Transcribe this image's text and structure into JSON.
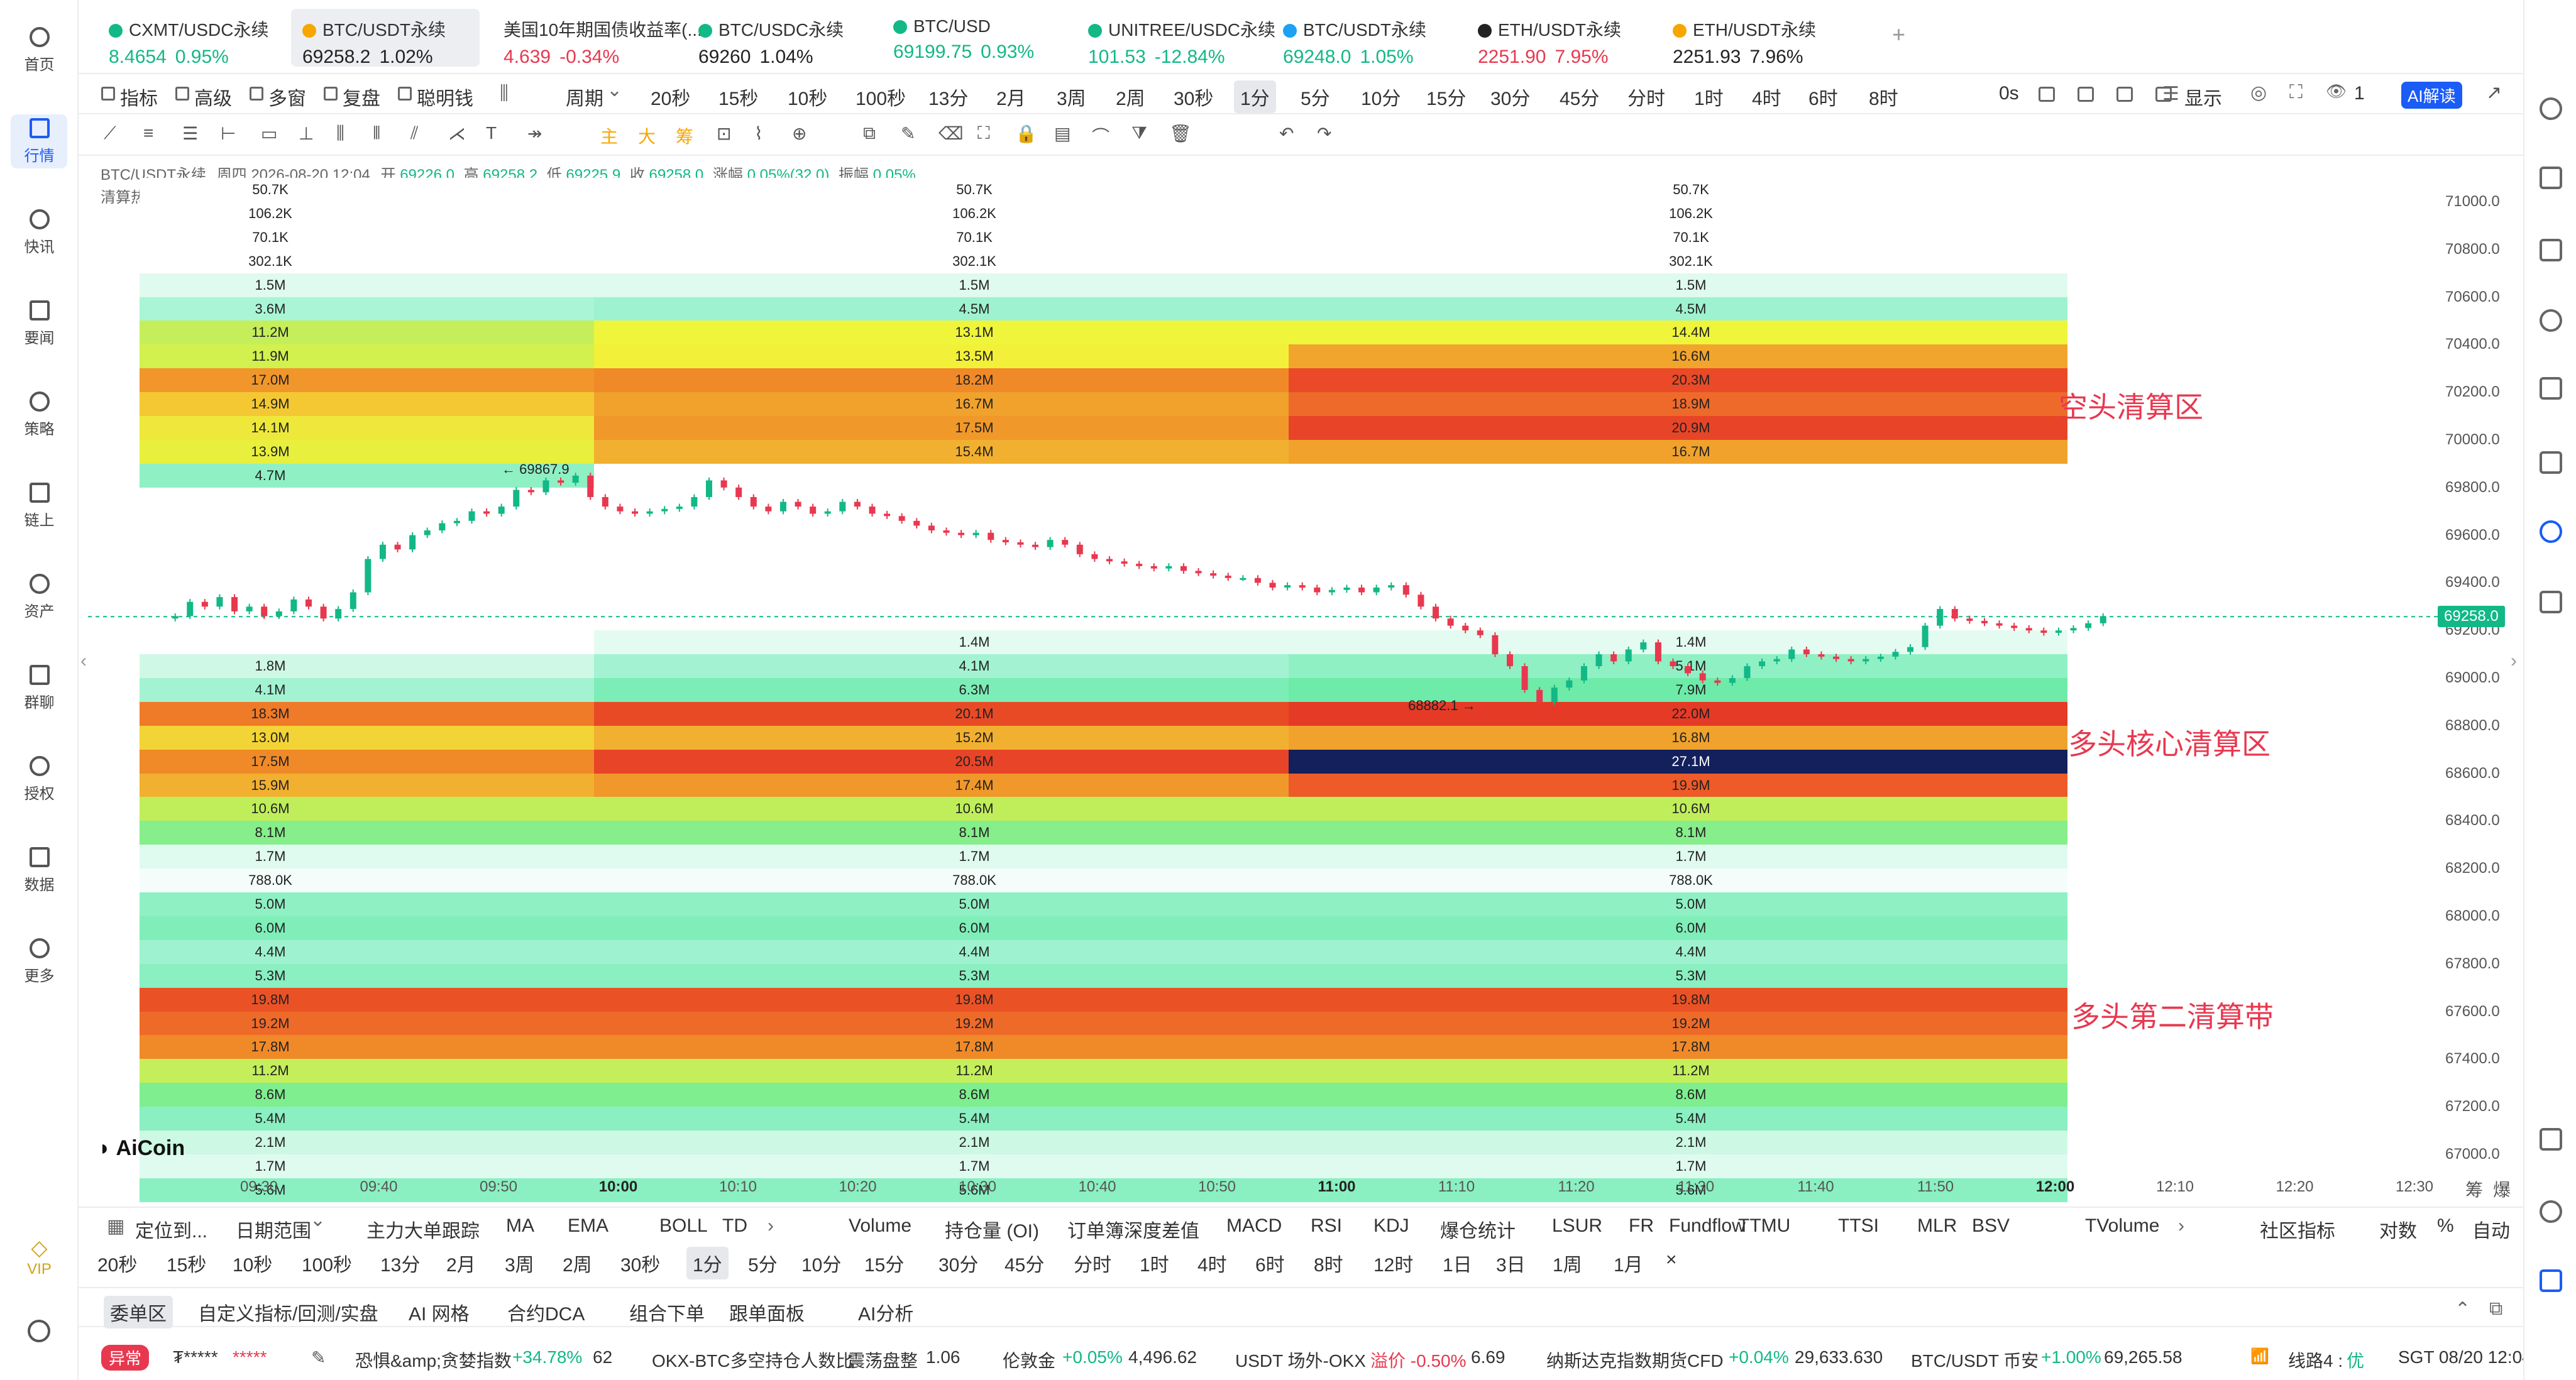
{
  "left_nav": [
    {
      "label": "首页",
      "icon": "home-icon"
    },
    {
      "label": "行情",
      "icon": "market-icon",
      "active": true
    },
    {
      "label": "快讯",
      "icon": "flash-news-icon"
    },
    {
      "label": "要闻",
      "icon": "news-icon"
    },
    {
      "label": "策略",
      "icon": "strategy-bot-icon"
    },
    {
      "label": "链上",
      "icon": "onchain-icon"
    },
    {
      "label": "资产",
      "icon": "wallet-icon"
    },
    {
      "label": "群聊",
      "icon": "group-chat-icon"
    },
    {
      "label": "授权",
      "icon": "authorize-icon"
    },
    {
      "label": "数据",
      "icon": "data-icon"
    },
    {
      "label": "更多",
      "icon": "more-grid-icon"
    }
  ],
  "vip_label": "VIP",
  "tickers": [
    {
      "name": "CXMT/USDC永续",
      "price": "8.4654",
      "change": "0.95%",
      "dir": "up",
      "coin_color": "#12b886"
    },
    {
      "name": "BTC/USDT永续",
      "price": "69258.2",
      "change": "1.02%",
      "dir": "neutral",
      "coin_color": "#f7a600",
      "selected": true
    },
    {
      "name": "美国10年期国债收益率(...",
      "price": "4.639",
      "change": "-0.34%",
      "dir": "dn"
    },
    {
      "name": "BTC/USDC永续",
      "price": "69260",
      "change": "1.04%",
      "dir": "neutral",
      "coin_color": "#12b886"
    },
    {
      "name": "BTC/USD",
      "price": "69199.75",
      "change": "0.93%",
      "dir": "up",
      "coin_color": "#12b886"
    },
    {
      "name": "UNITREE/USDC永续",
      "price": "101.53",
      "change": "-12.84%",
      "dir": "up",
      "coin_color": "#12b886"
    },
    {
      "name": "BTC/USDT永续",
      "price": "69248.0",
      "change": "1.05%",
      "dir": "up",
      "coin_color": "#1da1f2"
    },
    {
      "name": "ETH/USDT永续",
      "price": "2251.90",
      "change": "7.95%",
      "dir": "dn",
      "coin_color": "#222"
    },
    {
      "name": "ETH/USDT永续",
      "price": "2251.93",
      "change": "7.96%",
      "dir": "neutral",
      "coin_color": "#f7a600"
    }
  ],
  "add_tab": "+",
  "toolbar1": {
    "items": [
      "指标",
      "高级",
      "多窗",
      "复盘",
      "聪明钱"
    ],
    "period_label": "周期",
    "periods": [
      "20秒",
      "15秒",
      "10秒",
      "100秒",
      "13分",
      "2月",
      "3周",
      "2周",
      "30秒",
      "1分",
      "5分",
      "10分",
      "15分",
      "30分",
      "45分",
      "分时",
      "1时",
      "4时",
      "6时",
      "8时"
    ],
    "active_period": "1分",
    "countdown": "0s",
    "display": "显示",
    "layers": "1",
    "ai": "AI解读"
  },
  "chart_info": {
    "symbol": "BTC/USDT永续",
    "datetime": "周四 2026-08-20 12:04",
    "open_label": "开",
    "open": "69226.0",
    "high_label": "高",
    "high": "69258.2",
    "low_label": "低",
    "low": "69225.9",
    "close_label": "收",
    "close": "69258.0",
    "chg_label": "涨幅",
    "chg": "0.05%(32.0)",
    "amp_label": "振幅",
    "amp": "0.05%",
    "heatmap_label": "清算热力图"
  },
  "y_axis": [
    "71000.0",
    "70800.0",
    "70600.0",
    "70400.0",
    "70200.0",
    "70000.0",
    "69800.0",
    "69600.0",
    "69400.0",
    "69200.0",
    "69000.0",
    "68800.0",
    "68600.0",
    "68400.0",
    "68200.0",
    "68000.0",
    "67800.0",
    "67600.0",
    "67400.0",
    "67200.0",
    "67000.0"
  ],
  "x_axis": [
    "09:30",
    "09:40",
    "09:50",
    "10:00",
    "10:10",
    "10:20",
    "10:30",
    "10:40",
    "10:50",
    "11:00",
    "11:10",
    "11:20",
    "11:30",
    "11:40",
    "11:50",
    "12:00",
    "12:10",
    "12:20",
    "12:30"
  ],
  "current_price": "69258.0",
  "high_marker": "69867.9",
  "low_marker": "68882.1",
  "zone_labels": {
    "short": "空头清算区",
    "long_core": "多头核心清算区",
    "long_second": "多头第二清算带"
  },
  "watermark": "AiCoin",
  "axis_corner": [
    "筹",
    "爆"
  ],
  "heatmap": {
    "rows": [
      {
        "price": 71050,
        "labels": [
          "50.7K",
          "50.7K",
          "50.7K"
        ],
        "colors": [
          "#ffffff",
          "#ffffff",
          "#ffffff"
        ]
      },
      {
        "price": 70950,
        "labels": [
          "106.2K",
          "106.2K",
          "106.2K"
        ],
        "colors": [
          "#ffffff",
          "#ffffff",
          "#ffffff"
        ]
      },
      {
        "price": 70850,
        "labels": [
          "70.1K",
          "70.1K",
          "70.1K"
        ],
        "colors": [
          "#ffffff",
          "#ffffff",
          "#ffffff"
        ]
      },
      {
        "price": 70750,
        "labels": [
          "302.1K",
          "302.1K",
          "302.1K"
        ],
        "colors": [
          "#ffffff",
          "#ffffff",
          "#ffffff"
        ]
      },
      {
        "price": 70650,
        "labels": [
          "1.5M",
          "1.5M",
          "1.5M"
        ],
        "colors": [
          "#dffaef",
          "#dffaef",
          "#dffaef"
        ]
      },
      {
        "price": 70550,
        "labels": [
          "3.6M",
          "4.5M",
          "4.5M"
        ],
        "colors": [
          "#a9f5d6",
          "#9ef2cf",
          "#9ef2cf"
        ]
      },
      {
        "price": 70450,
        "labels": [
          "11.2M",
          "13.1M",
          "14.4M"
        ],
        "colors": [
          "#c4ef5a",
          "#eef53a",
          "#eef53a"
        ]
      },
      {
        "price": 70350,
        "labels": [
          "11.9M",
          "13.5M",
          "16.6M"
        ],
        "colors": [
          "#d2f04e",
          "#f3f03a",
          "#f2a52c"
        ]
      },
      {
        "price": 70250,
        "labels": [
          "17.0M",
          "18.2M",
          "20.3M"
        ],
        "colors": [
          "#f0962a",
          "#f08a28",
          "#ea4a27"
        ]
      },
      {
        "price": 70150,
        "labels": [
          "14.9M",
          "16.7M",
          "18.9M"
        ],
        "colors": [
          "#f4c832",
          "#f0a22c",
          "#ee6a2a"
        ]
      },
      {
        "price": 70050,
        "labels": [
          "14.1M",
          "17.5M",
          "20.9M"
        ],
        "colors": [
          "#eee83a",
          "#f0982a",
          "#e84427"
        ]
      },
      {
        "price": 69950,
        "labels": [
          "13.9M",
          "15.4M",
          "16.7M"
        ],
        "colors": [
          "#e8ef3c",
          "#f2b030",
          "#f0a22c"
        ]
      },
      {
        "price": 69850,
        "labels": [
          "4.7M",
          "",
          ""
        ],
        "colors": [
          "#8ff0c4",
          "transparent",
          "transparent"
        ]
      },
      {
        "price": 69150,
        "labels": [
          "",
          "1.4M",
          "1.4M"
        ],
        "colors": [
          "transparent",
          "#e4fbf1",
          "#e4fbf1"
        ]
      },
      {
        "price": 69050,
        "labels": [
          "1.8M",
          "4.1M",
          "5.1M"
        ],
        "colors": [
          "#cff8e6",
          "#a3f3d2",
          "#8ff0c4"
        ]
      },
      {
        "price": 68950,
        "labels": [
          "4.1M",
          "6.3M",
          "7.9M"
        ],
        "colors": [
          "#a3f3d2",
          "#7cedb6",
          "#6eeaa9"
        ]
      },
      {
        "price": 68850,
        "labels": [
          "18.3M",
          "20.1M",
          "22.0M"
        ],
        "colors": [
          "#ef7a28",
          "#e84a26",
          "#e53a26"
        ]
      },
      {
        "price": 68750,
        "labels": [
          "13.0M",
          "15.2M",
          "16.8M"
        ],
        "colors": [
          "#f2d436",
          "#f2b030",
          "#f0a22c"
        ]
      },
      {
        "price": 68650,
        "labels": [
          "17.5M",
          "20.5M",
          "27.1M"
        ],
        "colors": [
          "#f08a28",
          "#e84427",
          "#13205c"
        ]
      },
      {
        "price": 68550,
        "labels": [
          "15.9M",
          "17.4M",
          "19.9M"
        ],
        "colors": [
          "#f2b030",
          "#f0982a",
          "#ee5a28"
        ]
      },
      {
        "price": 68450,
        "labels": [
          "10.6M",
          "10.6M",
          "10.6M"
        ],
        "colors": [
          "#c0ee5a",
          "#c0ee5a",
          "#c0ee5a"
        ]
      },
      {
        "price": 68350,
        "labels": [
          "8.1M",
          "8.1M",
          "8.1M"
        ],
        "colors": [
          "#86ee8a",
          "#86ee8a",
          "#86ee8a"
        ]
      },
      {
        "price": 68250,
        "labels": [
          "1.7M",
          "1.7M",
          "1.7M"
        ],
        "colors": [
          "#dffaef",
          "#dffaef",
          "#dffaef"
        ]
      },
      {
        "price": 68150,
        "labels": [
          "788.0K",
          "788.0K",
          "788.0K"
        ],
        "colors": [
          "#f4fdf9",
          "#f4fdf9",
          "#f4fdf9"
        ]
      },
      {
        "price": 68050,
        "labels": [
          "5.0M",
          "5.0M",
          "5.0M"
        ],
        "colors": [
          "#8ff0c4",
          "#8ff0c4",
          "#8ff0c4"
        ]
      },
      {
        "price": 67950,
        "labels": [
          "6.0M",
          "6.0M",
          "6.0M"
        ],
        "colors": [
          "#80eeb9",
          "#80eeb9",
          "#80eeb9"
        ]
      },
      {
        "price": 67850,
        "labels": [
          "4.4M",
          "4.4M",
          "4.4M"
        ],
        "colors": [
          "#9ef2cf",
          "#9ef2cf",
          "#9ef2cf"
        ]
      },
      {
        "price": 67750,
        "labels": [
          "5.3M",
          "5.3M",
          "5.3M"
        ],
        "colors": [
          "#8aefc1",
          "#8aefc1",
          "#8aefc1"
        ]
      },
      {
        "price": 67650,
        "labels": [
          "19.8M",
          "19.8M",
          "19.8M"
        ],
        "colors": [
          "#ea5226",
          "#ea5226",
          "#ea5226"
        ]
      },
      {
        "price": 67550,
        "labels": [
          "19.2M",
          "19.2M",
          "19.2M"
        ],
        "colors": [
          "#ee6a28",
          "#ee6a28",
          "#ee6a28"
        ]
      },
      {
        "price": 67450,
        "labels": [
          "17.8M",
          "17.8M",
          "17.8M"
        ],
        "colors": [
          "#f08a28",
          "#f08a28",
          "#f08a28"
        ]
      },
      {
        "price": 67350,
        "labels": [
          "11.2M",
          "11.2M",
          "11.2M"
        ],
        "colors": [
          "#c4ef5a",
          "#c4ef5a",
          "#c4ef5a"
        ]
      },
      {
        "price": 67250,
        "labels": [
          "8.6M",
          "8.6M",
          "8.6M"
        ],
        "colors": [
          "#7eee8e",
          "#7eee8e",
          "#7eee8e"
        ]
      },
      {
        "price": 67150,
        "labels": [
          "5.4M",
          "5.4M",
          "5.4M"
        ],
        "colors": [
          "#8aefc1",
          "#8aefc1",
          "#8aefc1"
        ]
      },
      {
        "price": 67050,
        "labels": [
          "2.1M",
          "2.1M",
          "2.1M"
        ],
        "colors": [
          "#ccf8e4",
          "#ccf8e4",
          "#ccf8e4"
        ]
      },
      {
        "price": 66950,
        "labels": [
          "1.7M",
          "1.7M",
          "1.7M"
        ],
        "colors": [
          "#dffaef",
          "#dffaef",
          "#dffaef"
        ]
      },
      {
        "price": 66850,
        "labels": [
          "5.6M",
          "5.6M",
          "5.6M"
        ],
        "colors": [
          "#8aefc1",
          "#8aefc1",
          "#8aefc1"
        ]
      }
    ],
    "segments_time": [
      "09:20",
      "09:58",
      "10:56",
      "12:01"
    ]
  },
  "candles_close": [
    69260,
    69320,
    69300,
    69340,
    69280,
    69300,
    69260,
    69280,
    69330,
    69300,
    69250,
    69290,
    69360,
    69500,
    69560,
    69540,
    69600,
    69620,
    69650,
    69660,
    69700,
    69690,
    69720,
    69790,
    69780,
    69830,
    69820,
    69850,
    69760,
    69720,
    69700,
    69690,
    69700,
    69710,
    69720,
    69760,
    69830,
    69800,
    69760,
    69720,
    69700,
    69740,
    69720,
    69690,
    69700,
    69740,
    69720,
    69690,
    69680,
    69660,
    69640,
    69620,
    69610,
    69600,
    69610,
    69580,
    69570,
    69560,
    69550,
    69580,
    69560,
    69520,
    69500,
    69490,
    69480,
    69470,
    69460,
    69470,
    69450,
    69440,
    69430,
    69420,
    69420,
    69400,
    69380,
    69390,
    69380,
    69360,
    69370,
    69380,
    69360,
    69380,
    69390,
    69350,
    69300,
    69250,
    69220,
    69200,
    69180,
    69100,
    69050,
    68950,
    68900,
    68960,
    68990,
    69050,
    69100,
    69070,
    69120,
    69150,
    69070,
    69050,
    69020,
    68990,
    68980,
    69000,
    69050,
    69070,
    69080,
    69120,
    69100,
    69090,
    69080,
    69070,
    69080,
    69090,
    69110,
    69130,
    69220,
    69290,
    69250,
    69240,
    69230,
    69220,
    69210,
    69200,
    69190,
    69200,
    69210,
    69230,
    69260
  ],
  "indicator_bar": {
    "left": [
      "定位到...",
      "日期范围",
      "主力大单跟踪",
      "MA",
      "EMA",
      "BOLL",
      "TD"
    ],
    "sub": [
      "Volume",
      "持仓量 (OI)",
      "订单簿深度差值",
      "MACD",
      "RSI",
      "KDJ",
      "爆仓统计",
      "LSUR",
      "FR",
      "Fundflow",
      "TTMU",
      "TTSI",
      "MLR",
      "BSV",
      "TVolume"
    ],
    "right": [
      "社区指标",
      "对数",
      "%",
      "自动"
    ]
  },
  "period_bar": [
    "20秒",
    "15秒",
    "10秒",
    "100秒",
    "13分",
    "2月",
    "3周",
    "2周",
    "30秒",
    "1分",
    "5分",
    "10分",
    "15分",
    "30分",
    "45分",
    "分时",
    "1时",
    "4时",
    "6时",
    "8时",
    "12时",
    "1日",
    "3日",
    "1周",
    "1月",
    "×"
  ],
  "bottom_tabs": [
    "委单区",
    "自定义指标/回测/实盘",
    "AI 网格",
    "合约DCA",
    "组合下单",
    "跟单面板",
    "AI分析"
  ],
  "status_bar": {
    "badge": "异常",
    "masked": "₮*****",
    "stars": "*****",
    "items": [
      {
        "label": "恐惧&amp;贪婪指数",
        "change": "+34.78%",
        "value": "62",
        "dir": "up"
      },
      {
        "label": "OKX-BTC多空持仓人数比",
        "change": "震荡盘整",
        "value": "1.06",
        "dir": "neutral"
      },
      {
        "label": "伦敦金",
        "change": "+0.05%",
        "value": "4,496.62",
        "dir": "up"
      },
      {
        "label": "USDT 场外-OKX",
        "change": "溢价 -0.50%",
        "value": "6.69",
        "dir": "dn"
      },
      {
        "label": "纳斯达克指数期货CFD",
        "change": "+0.04%",
        "value": "29,633.630",
        "dir": "up"
      },
      {
        "label": "BTC/USDT 币安",
        "change": "+1.00%",
        "value": "69,265.58",
        "dir": "up"
      }
    ],
    "line": "线路4 :",
    "line_quality": "优",
    "clock": "SGT 08/20 12:04:26"
  }
}
